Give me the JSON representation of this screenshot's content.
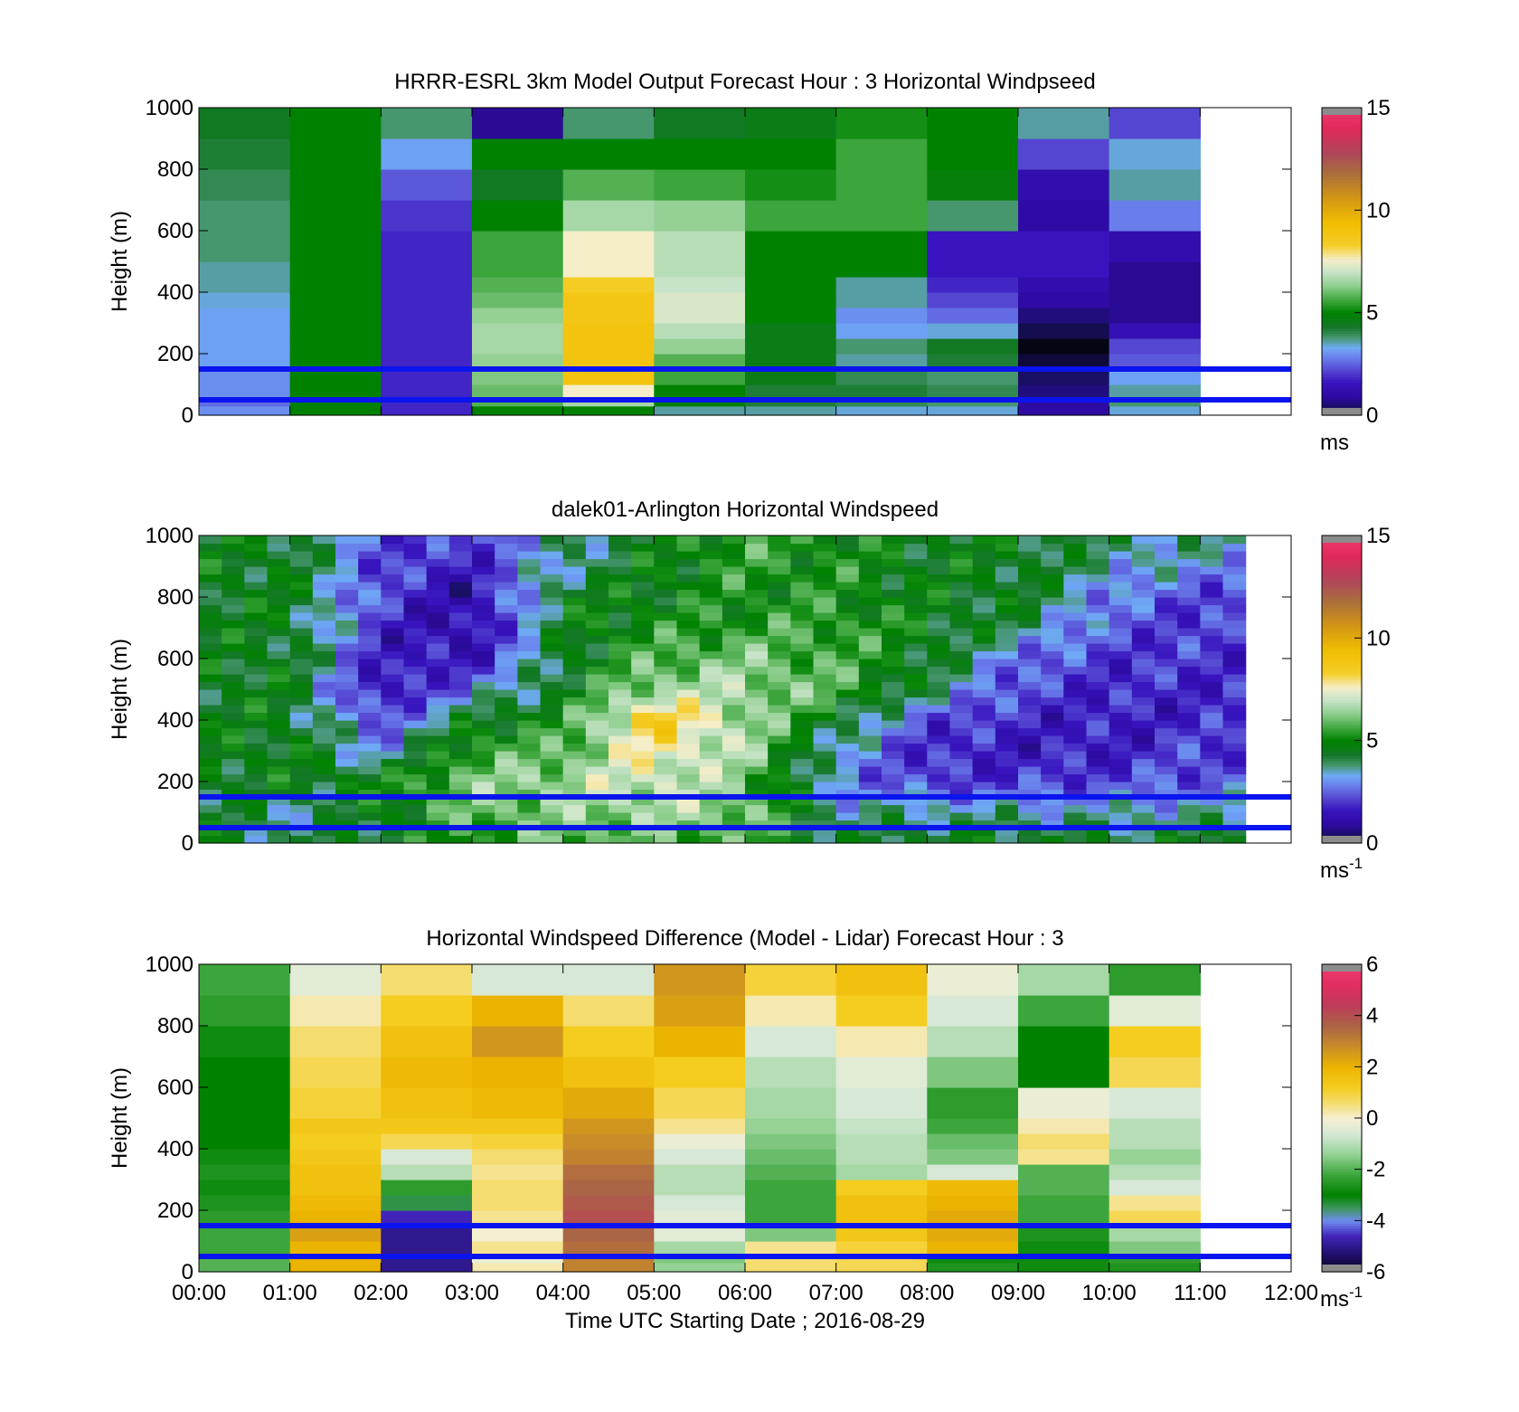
{
  "chart_data": [
    {
      "type": "heatmap",
      "title": "HRRR-ESRL 3km Model Output   Forecast Hour : 3 Horizontal Windpseed",
      "ylabel": "Height (m)",
      "xlabel": "",
      "xlim": [
        0,
        12
      ],
      "ylim": [
        0,
        1000
      ],
      "yticks": [
        0,
        200,
        400,
        600,
        800,
        1000
      ],
      "xtick_values": [
        0,
        1,
        2,
        3,
        4,
        5,
        6,
        7,
        8,
        9,
        10,
        11,
        12
      ],
      "colorbar": {
        "ticks": [
          0,
          5,
          10,
          15
        ],
        "range": [
          0,
          15
        ],
        "unit": "ms",
        "unit_sup": "",
        "scheme": "speed"
      },
      "reference_lines_m": [
        50,
        150
      ],
      "grid": false,
      "hours": [
        0,
        1,
        2,
        3,
        4,
        5,
        6,
        7,
        8,
        9,
        10
      ],
      "z_levels_m": [
        0,
        30,
        60,
        100,
        150,
        200,
        250,
        300,
        350,
        400,
        450,
        500,
        600,
        700,
        800,
        900,
        1000
      ],
      "values": [
        [
          3.0,
          2.6,
          3.0,
          3.0,
          3.2,
          3.2,
          3.2,
          3.2,
          3.4,
          3.6,
          3.6,
          3.8,
          3.8,
          4.0,
          4.2,
          4.4
        ],
        [
          5.0,
          5.0,
          5.0,
          5.0,
          5.0,
          5.0,
          5.0,
          5.0,
          5.0,
          5.0,
          5.0,
          5.0,
          5.0,
          5.0,
          5.0,
          5.0
        ],
        [
          1.8,
          1.8,
          1.8,
          1.8,
          1.8,
          1.8,
          1.8,
          1.8,
          1.8,
          1.8,
          1.8,
          1.8,
          2.0,
          2.4,
          3.2,
          3.8
        ],
        [
          5.0,
          5.8,
          6.0,
          6.2,
          6.4,
          6.6,
          6.6,
          6.4,
          6.0,
          5.8,
          5.6,
          5.6,
          5.0,
          4.4,
          5.0,
          0.8
        ],
        [
          5.0,
          6.6,
          7.6,
          9.0,
          9.0,
          9.0,
          9.0,
          8.8,
          8.8,
          8.4,
          7.6,
          7.6,
          6.6,
          5.8,
          5.0,
          3.8
        ],
        [
          3.6,
          5.0,
          5.0,
          5.6,
          5.8,
          6.4,
          6.8,
          7.2,
          7.2,
          7.0,
          6.8,
          6.8,
          6.4,
          5.6,
          5.0,
          4.4
        ],
        [
          3.6,
          4.2,
          4.2,
          4.6,
          4.6,
          4.6,
          4.6,
          5.0,
          5.0,
          5.0,
          5.0,
          5.0,
          5.6,
          5.2,
          5.0,
          4.6
        ],
        [
          3.4,
          4.0,
          4.2,
          4.0,
          3.6,
          3.8,
          3.2,
          3.0,
          3.6,
          3.6,
          5.0,
          5.0,
          5.6,
          5.6,
          5.6,
          5.2
        ],
        [
          3.4,
          3.8,
          4.0,
          3.8,
          4.2,
          4.4,
          3.4,
          2.6,
          2.2,
          1.8,
          1.6,
          1.6,
          3.8,
          4.8,
          5.0,
          5.0
        ],
        [
          1.0,
          1.0,
          0.6,
          0.4,
          0.2,
          0.0,
          0.3,
          0.6,
          1.0,
          1.2,
          1.6,
          1.6,
          1.0,
          1.2,
          2.2,
          3.6
        ],
        [
          3.4,
          3.8,
          3.6,
          3.2,
          2.4,
          2.2,
          1.4,
          0.8,
          0.8,
          0.8,
          0.8,
          1.2,
          2.8,
          3.6,
          3.4,
          2.2
        ]
      ]
    },
    {
      "type": "heatmap",
      "title": "dalek01-Arlington  Horizontal Windspeed",
      "ylabel": "Height (m)",
      "xlabel": "",
      "xlim": [
        0,
        12
      ],
      "ylim": [
        0,
        1000
      ],
      "yticks": [
        0,
        200,
        400,
        600,
        800,
        1000
      ],
      "xtick_values": [
        0,
        1,
        2,
        3,
        4,
        5,
        6,
        7,
        8,
        9,
        10,
        11,
        12
      ],
      "colorbar": {
        "ticks": [
          0,
          5,
          10,
          15
        ],
        "range": [
          0,
          15
        ],
        "unit": "ms",
        "unit_sup": "-1",
        "scheme": "speed"
      },
      "reference_lines_m": [
        50,
        150
      ],
      "grid": false,
      "time_range_h": [
        0,
        11.3
      ],
      "profile_step_h": 0.25,
      "hour_anchors": [
        0,
        1,
        2,
        3,
        4,
        5,
        6,
        7,
        8,
        9,
        10,
        11
      ],
      "z_anchors_m": [
        0,
        100,
        200,
        300,
        400,
        500,
        600,
        700,
        800,
        900,
        1000
      ],
      "anchor_values": [
        [
          4.5,
          4.5,
          4.6,
          4.6,
          4.6,
          4.6,
          4.6,
          4.5,
          4.6,
          4.6,
          4.6
        ],
        [
          4.0,
          3.6,
          4.6,
          4.8,
          4.6,
          4.6,
          4.6,
          4.6,
          4.6,
          4.6,
          4.6
        ],
        [
          4.6,
          4.6,
          5.0,
          3.0,
          2.2,
          1.2,
          1.6,
          1.8,
          2.2,
          2.2,
          2.2
        ],
        [
          5.2,
          6.0,
          6.2,
          5.6,
          4.6,
          2.8,
          1.4,
          1.0,
          1.0,
          1.6,
          2.2
        ],
        [
          6.0,
          6.2,
          6.6,
          5.8,
          5.2,
          4.6,
          4.4,
          4.6,
          4.6,
          3.6,
          3.6
        ],
        [
          5.6,
          6.6,
          7.2,
          7.8,
          8.8,
          6.6,
          5.8,
          5.2,
          4.8,
          4.8,
          4.6
        ],
        [
          5.6,
          6.4,
          6.0,
          6.6,
          6.6,
          6.6,
          6.2,
          5.4,
          5.2,
          5.4,
          5.6
        ],
        [
          4.2,
          3.6,
          3.0,
          3.4,
          4.4,
          5.8,
          5.6,
          5.6,
          5.2,
          5.2,
          5.0
        ],
        [
          4.6,
          3.8,
          2.0,
          1.8,
          2.2,
          4.0,
          4.6,
          4.8,
          4.6,
          4.6,
          4.6
        ],
        [
          4.6,
          3.6,
          2.0,
          1.6,
          1.8,
          2.2,
          2.6,
          4.0,
          4.6,
          4.6,
          4.6
        ],
        [
          4.4,
          3.4,
          2.2,
          1.6,
          1.6,
          1.8,
          2.0,
          2.4,
          2.8,
          3.6,
          4.0
        ],
        [
          4.6,
          3.6,
          2.4,
          2.2,
          1.8,
          1.8,
          2.0,
          2.0,
          2.2,
          3.0,
          3.8
        ]
      ]
    },
    {
      "type": "heatmap",
      "title": "Horizontal Windspeed Difference (Model - Lidar) Forecast Hour : 3",
      "ylabel": "Height (m)",
      "xlabel": "Time UTC  Starting Date ; 2016-08-29",
      "xlim": [
        0,
        12
      ],
      "ylim": [
        0,
        1000
      ],
      "yticks": [
        0,
        200,
        400,
        600,
        800,
        1000
      ],
      "xtick_values": [
        0,
        1,
        2,
        3,
        4,
        5,
        6,
        7,
        8,
        9,
        10,
        11,
        12
      ],
      "xticklabels": [
        "00:00",
        "01:00",
        "02:00",
        "03:00",
        "04:00",
        "05:00",
        "06:00",
        "07:00",
        "08:00",
        "09:00",
        "10:00",
        "11:00",
        "12:00"
      ],
      "colorbar": {
        "ticks": [
          -6,
          -4,
          -2,
          0,
          2,
          4,
          6
        ],
        "range": [
          -6,
          6
        ],
        "unit": "ms",
        "unit_sup": "-1",
        "scheme": "diff"
      },
      "reference_lines_m": [
        50,
        150
      ],
      "grid": false,
      "hours": [
        0,
        1,
        2,
        3,
        4,
        5,
        6,
        7,
        8,
        9,
        10
      ],
      "z_levels_m": [
        0,
        30,
        60,
        100,
        150,
        200,
        250,
        300,
        350,
        400,
        450,
        500,
        600,
        700,
        800,
        900,
        1000
      ],
      "values": [
        [
          -2.0,
          -2.0,
          -2.2,
          -2.2,
          -2.4,
          -2.6,
          -2.8,
          -2.6,
          -2.8,
          -3.0,
          -3.0,
          -3.0,
          -3.0,
          -2.8,
          -2.4,
          -2.2
        ],
        [
          2.0,
          2.0,
          2.0,
          2.4,
          2.0,
          1.8,
          1.6,
          1.6,
          1.4,
          1.2,
          1.4,
          1.0,
          0.8,
          0.6,
          0.2,
          -0.4
        ],
        [
          -5.0,
          -5.0,
          -5.0,
          -5.0,
          -4.6,
          -3.4,
          -2.4,
          -1.0,
          -0.6,
          0.8,
          1.4,
          1.6,
          1.8,
          1.6,
          1.2,
          0.6
        ],
        [
          0.2,
          -0.2,
          0.4,
          0.0,
          0.4,
          0.6,
          0.6,
          0.4,
          0.6,
          1.0,
          1.4,
          1.8,
          2.0,
          2.6,
          2.0,
          -0.6
        ],
        [
          3.0,
          3.0,
          3.4,
          3.6,
          4.0,
          3.8,
          3.6,
          3.4,
          3.0,
          2.8,
          2.6,
          2.2,
          1.6,
          1.2,
          0.6,
          -0.6
        ],
        [
          -1.4,
          -1.6,
          -1.2,
          -0.4,
          -0.4,
          -0.6,
          -1.0,
          -1.0,
          -0.6,
          -0.2,
          0.4,
          0.8,
          1.2,
          2.0,
          2.4,
          2.6
        ],
        [
          0.6,
          0.6,
          0.4,
          -1.6,
          -2.2,
          -2.2,
          -2.2,
          -2.0,
          -1.8,
          -1.6,
          -1.4,
          -1.2,
          -1.0,
          -0.6,
          0.2,
          1.0
        ],
        [
          0.8,
          0.8,
          1.0,
          1.4,
          1.6,
          1.6,
          1.2,
          -1.2,
          -1.0,
          -1.0,
          -0.8,
          -0.6,
          -0.4,
          0.2,
          1.2,
          1.6
        ],
        [
          -2.6,
          -2.8,
          2.0,
          2.2,
          2.2,
          2.0,
          1.8,
          -0.6,
          -1.6,
          -1.8,
          -2.2,
          -2.4,
          -1.6,
          -1.0,
          -0.6,
          -0.2
        ],
        [
          -2.8,
          -2.8,
          -2.8,
          -2.6,
          -2.2,
          -2.2,
          -2.0,
          -2.0,
          0.4,
          0.6,
          0.2,
          -0.2,
          -3.0,
          -3.0,
          -2.2,
          -1.2
        ],
        [
          -2.6,
          -2.4,
          -1.6,
          -1.2,
          0.8,
          0.4,
          -0.6,
          -1.0,
          -1.4,
          -1.0,
          -1.0,
          -0.6,
          0.8,
          1.2,
          -0.4,
          -2.4
        ]
      ]
    }
  ]
}
